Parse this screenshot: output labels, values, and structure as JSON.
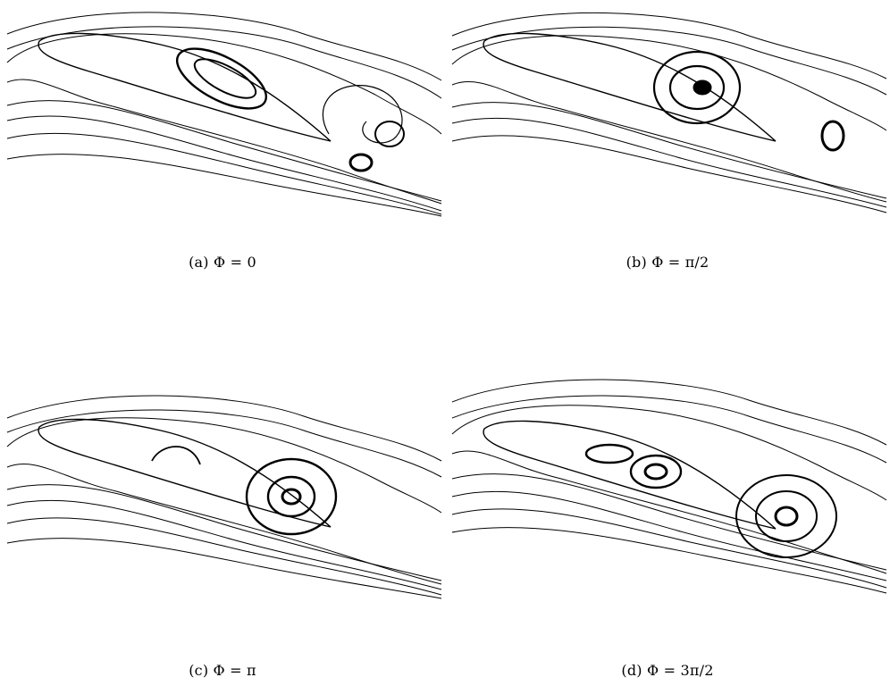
{
  "figure": {
    "panels": [
      {
        "id": "a",
        "caption": "(a) Φ = 0"
      },
      {
        "id": "b",
        "caption": "(b) Φ = π/2"
      },
      {
        "id": "c",
        "caption": "(c) Φ = π"
      },
      {
        "id": "d",
        "caption": "(d) Φ = 3π/2"
      }
    ]
  }
}
